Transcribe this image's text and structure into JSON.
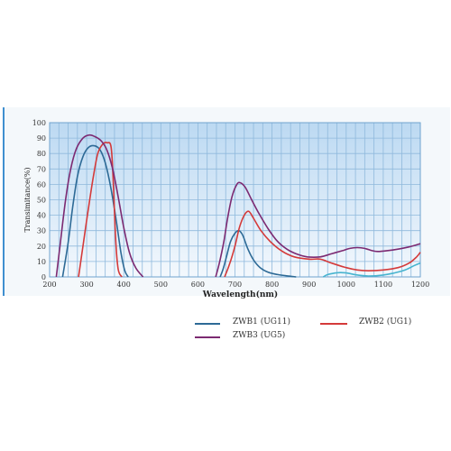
{
  "chart_data": {
    "type": "line",
    "title": "",
    "xlabel": "Wavelength(nm)",
    "ylabel": "Transimitance(%)",
    "xlim": [
      200,
      1200
    ],
    "ylim": [
      0,
      100
    ],
    "x_ticks": [
      "200",
      "300",
      "400",
      "500",
      "600",
      "700",
      "800",
      "900",
      "1000",
      "1100",
      "1200"
    ],
    "y_ticks": [
      "0",
      "10",
      "20",
      "30",
      "40",
      "50",
      "60",
      "70",
      "80",
      "90",
      "100"
    ],
    "grid": true,
    "legend_position": "bottom",
    "series": [
      {
        "name": "ZWB1 (UG11)",
        "color": "#2d6a96",
        "segments": [
          [
            [
              235,
              0
            ],
            [
              250,
              22
            ],
            [
              262,
              45
            ],
            [
              275,
              65
            ],
            [
              290,
              78
            ],
            [
              305,
              84
            ],
            [
              322,
              85
            ],
            [
              337,
              82
            ],
            [
              350,
              74
            ],
            [
              365,
              58
            ],
            [
              380,
              36
            ],
            [
              393,
              15
            ],
            [
              403,
              4
            ],
            [
              412,
              0
            ]
          ],
          [
            [
              660,
              0
            ],
            [
              668,
              5
            ],
            [
              678,
              14
            ],
            [
              688,
              23
            ],
            [
              699,
              28
            ],
            [
              710,
              30
            ],
            [
              721,
              27
            ],
            [
              735,
              18
            ],
            [
              750,
              11
            ],
            [
              768,
              6
            ],
            [
              790,
              3
            ],
            [
              815,
              1.5
            ],
            [
              845,
              0.5
            ],
            [
              865,
              0
            ]
          ]
        ]
      },
      {
        "name": "ZWB1 (UG11) (light)",
        "color": "#47b4cf",
        "segments": [
          [
            [
              938,
              0
            ],
            [
              950,
              1.5
            ],
            [
              975,
              2.7
            ],
            [
              1000,
              2.6
            ],
            [
              1025,
              1.4
            ],
            [
              1060,
              0.6
            ],
            [
              1100,
              1.2
            ],
            [
              1130,
              2.6
            ],
            [
              1160,
              4.6
            ],
            [
              1185,
              7.5
            ],
            [
              1200,
              9
            ]
          ]
        ]
      },
      {
        "name": "ZWB2 (UG1)",
        "color": "#d43a3a",
        "segments": [
          [
            [
              278,
              0
            ],
            [
              290,
              20
            ],
            [
              305,
              45
            ],
            [
              318,
              65
            ],
            [
              330,
              80
            ],
            [
              343,
              86
            ],
            [
              355,
              87
            ],
            [
              366,
              84
            ],
            [
              372,
              60
            ],
            [
              378,
              25
            ],
            [
              385,
              5
            ],
            [
              395,
              0
            ]
          ],
          [
            [
              672,
              0
            ],
            [
              685,
              8
            ],
            [
              700,
              20
            ],
            [
              712,
              32
            ],
            [
              725,
              40
            ],
            [
              737,
              42.5
            ],
            [
              750,
              38
            ],
            [
              770,
              30
            ],
            [
              795,
              23
            ],
            [
              825,
              17
            ],
            [
              860,
              13
            ],
            [
              900,
              11.5
            ],
            [
              930,
              11.5
            ],
            [
              960,
              9
            ],
            [
              1000,
              6
            ],
            [
              1030,
              4.5
            ],
            [
              1060,
              4
            ],
            [
              1100,
              4.5
            ],
            [
              1140,
              6
            ],
            [
              1170,
              9
            ],
            [
              1190,
              13
            ],
            [
              1200,
              16
            ]
          ]
        ]
      },
      {
        "name": "ZWB3 (UG5)",
        "color": "#7c2a72",
        "segments": [
          [
            [
              218,
              0
            ],
            [
              228,
              20
            ],
            [
              243,
              50
            ],
            [
              257,
              70
            ],
            [
              272,
              83
            ],
            [
              290,
              90
            ],
            [
              307,
              92
            ],
            [
              322,
              91
            ],
            [
              340,
              88
            ],
            [
              355,
              82
            ],
            [
              370,
              70
            ],
            [
              385,
              52
            ],
            [
              400,
              32
            ],
            [
              415,
              16
            ],
            [
              432,
              6
            ],
            [
              452,
              0
            ]
          ],
          [
            [
              648,
              0
            ],
            [
              658,
              9
            ],
            [
              670,
              23
            ],
            [
              680,
              38
            ],
            [
              692,
              52
            ],
            [
              705,
              60
            ],
            [
              715,
              61
            ],
            [
              728,
              58
            ],
            [
              745,
              50
            ],
            [
              765,
              41
            ],
            [
              790,
              31
            ],
            [
              815,
              23
            ],
            [
              840,
              18
            ],
            [
              865,
              15
            ],
            [
              895,
              13
            ],
            [
              930,
              13
            ],
            [
              960,
              15
            ],
            [
              990,
              17
            ],
            [
              1010,
              18.5
            ],
            [
              1030,
              19
            ],
            [
              1050,
              18.5
            ],
            [
              1070,
              17
            ],
            [
              1085,
              16.5
            ],
            [
              1110,
              17
            ],
            [
              1140,
              18
            ],
            [
              1170,
              19.5
            ],
            [
              1200,
              21.5
            ]
          ]
        ]
      }
    ]
  },
  "legend": [
    {
      "label": "ZWB1  (UG11)",
      "color": "#2d6a96"
    },
    {
      "label": "ZWB2  (UG1)",
      "color": "#d43a3a"
    },
    {
      "label": "ZWB3  (UG5)",
      "color": "#7c2a72"
    }
  ]
}
